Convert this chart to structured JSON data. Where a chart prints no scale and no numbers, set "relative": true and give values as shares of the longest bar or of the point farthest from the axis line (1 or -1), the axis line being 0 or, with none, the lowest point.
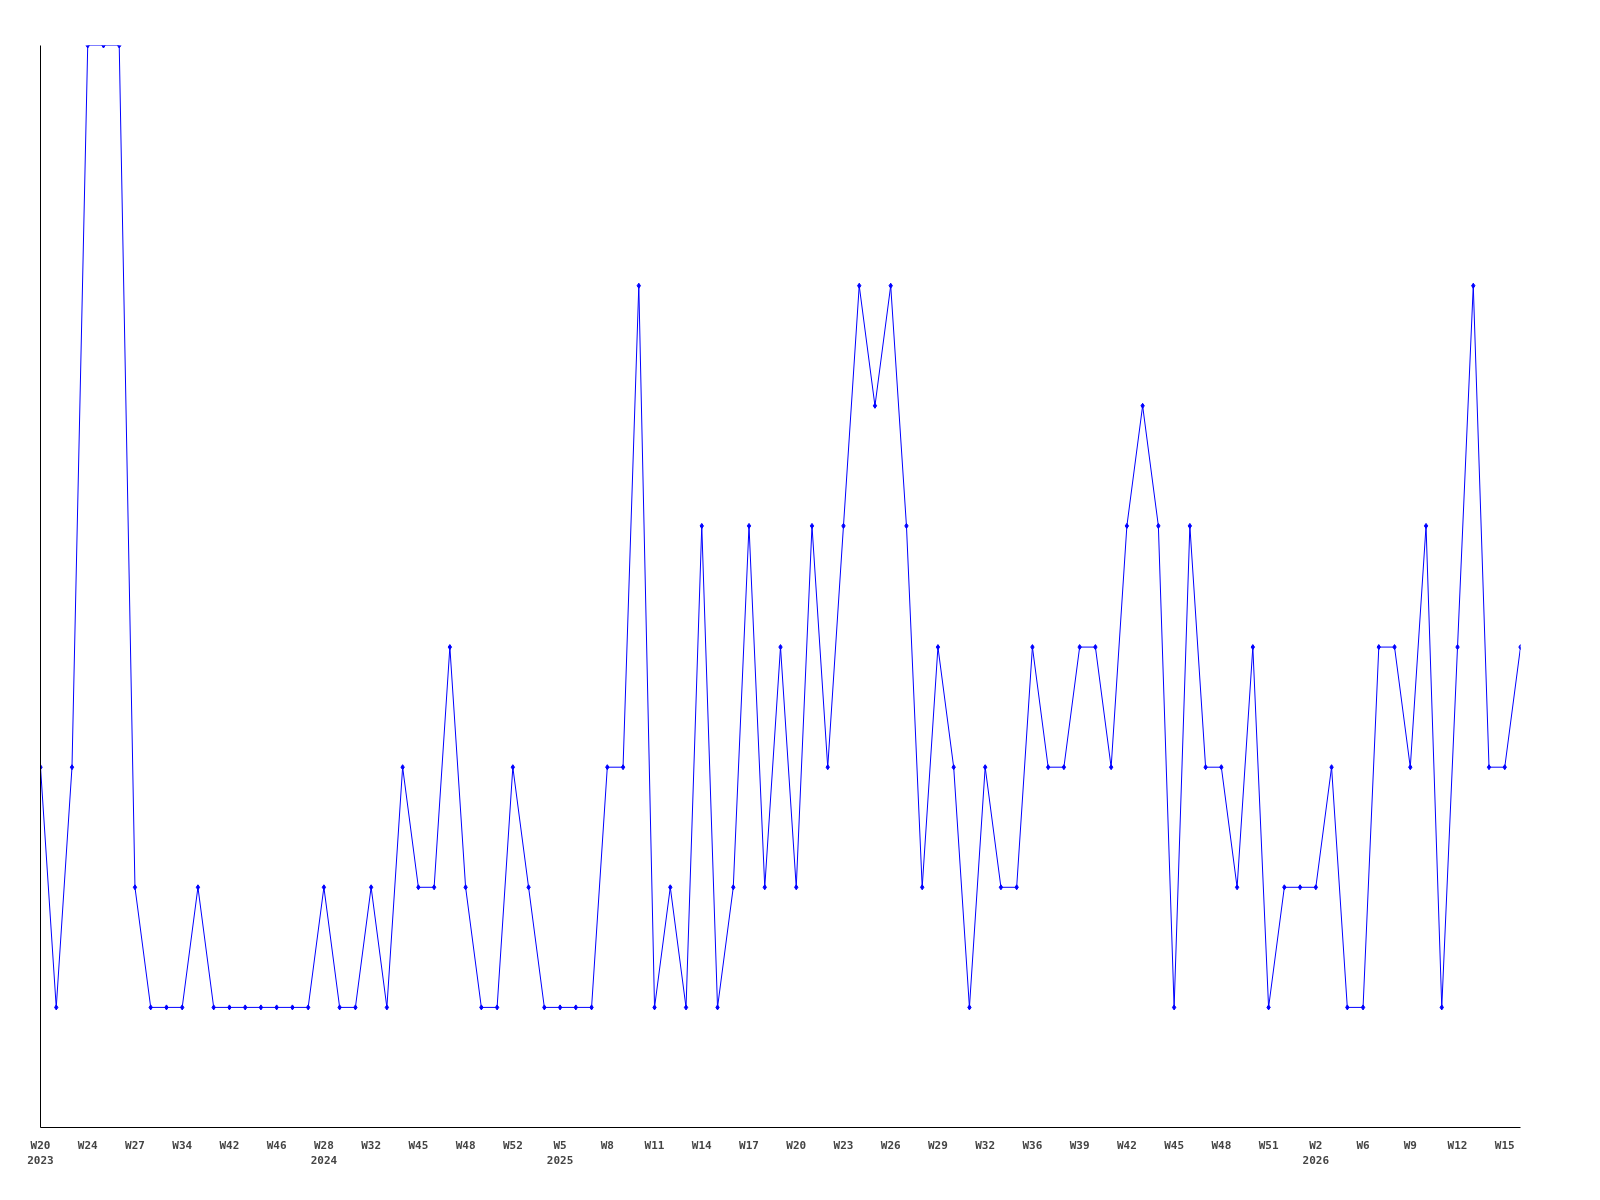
{
  "chart_data": {
    "type": "line",
    "relative": true,
    "categories": [
      "W20\n2023",
      null,
      null,
      "W24",
      null,
      null,
      "W27",
      null,
      null,
      "W34",
      null,
      null,
      "W42",
      null,
      null,
      "W46",
      null,
      null,
      "W28\n2024",
      null,
      null,
      "W32",
      null,
      null,
      "W45",
      null,
      null,
      "W48",
      null,
      null,
      "W52",
      null,
      null,
      "W5\n2025",
      null,
      null,
      "W8",
      null,
      null,
      "W11",
      null,
      null,
      "W14",
      null,
      null,
      "W17",
      null,
      null,
      "W20",
      null,
      null,
      "W23",
      null,
      null,
      "W26",
      null,
      null,
      "W29",
      null,
      null,
      "W32",
      null,
      null,
      "W36",
      null,
      null,
      "W39",
      null,
      null,
      "W42",
      null,
      null,
      "W45",
      null,
      null,
      "W48",
      null,
      null,
      "W51",
      null,
      null,
      "W2\n2026",
      null,
      null,
      "W6",
      null,
      null,
      "W9",
      null,
      null,
      "W12",
      null,
      null,
      "W15",
      null
    ],
    "series": [
      {
        "color": "#0000ff",
        "values": [
          0.333,
          0.111,
          0.333,
          1,
          1,
          1,
          0.222,
          0.111,
          0.111,
          0.111,
          0.222,
          0.111,
          0.111,
          0.111,
          0.111,
          0.111,
          0.111,
          0.111,
          0.222,
          0.111,
          0.111,
          0.222,
          0.111,
          0.333,
          0.222,
          0.222,
          0.444,
          0.222,
          0.111,
          0.111,
          0.333,
          0.222,
          0.111,
          0.111,
          0.111,
          0.111,
          0.333,
          0.333,
          0.778,
          0.111,
          0.222,
          0.111,
          0.556,
          0.111,
          0.222,
          0.556,
          0.222,
          0.444,
          0.222,
          0.556,
          0.333,
          0.556,
          0.778,
          0.667,
          0.778,
          0.556,
          0.222,
          0.444,
          0.333,
          0.111,
          0.333,
          0.222,
          0.222,
          0.444,
          0.333,
          0.333,
          0.444,
          0.444,
          0.333,
          0.556,
          0.667,
          0.556,
          0.111,
          0.556,
          0.333,
          0.333,
          0.222,
          0.444,
          0.111,
          0.222,
          0.222,
          0.222,
          0.333,
          0.111,
          0.111,
          0.444,
          0.444,
          0.333,
          0.556,
          0.111,
          0.444,
          0.778,
          0.333,
          0.333,
          0.444
        ]
      }
    ],
    "marker": "diamond"
  }
}
